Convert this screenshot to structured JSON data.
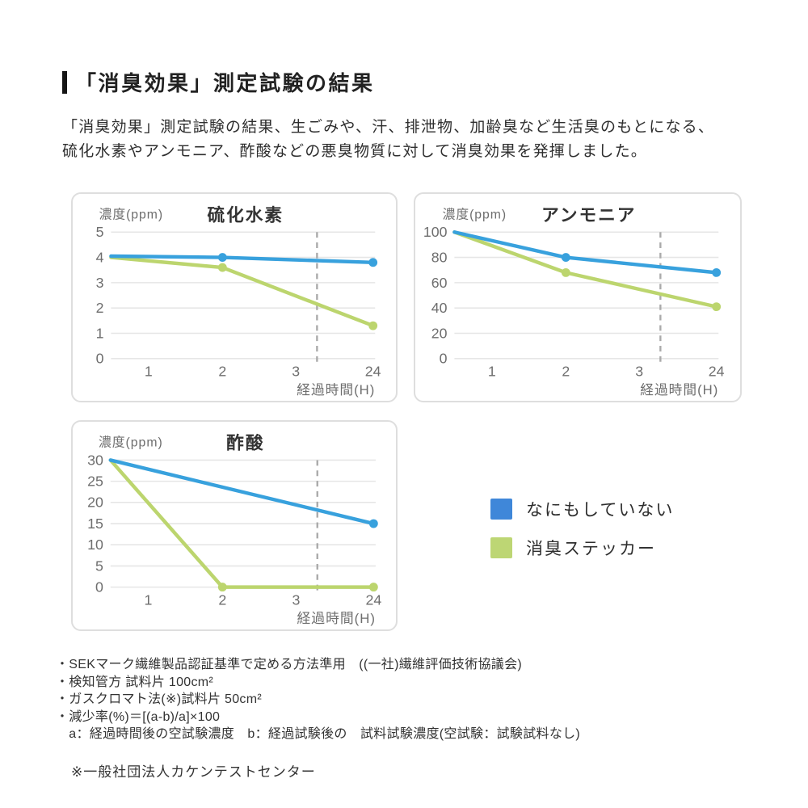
{
  "page": {
    "title": "「消臭効果」測定試験の結果",
    "intro_lines": [
      "「消臭効果」測定試験の結果、生ごみや、汗、排泄物、加齢臭など生活臭のもとになる、",
      "硫化水素やアンモニア、酢酸などの悪臭物質に対して消臭効果を発揮しました。"
    ]
  },
  "colors": {
    "blue": "#38a1dd",
    "green": "#bcd56e",
    "grid": "#e6e6e6",
    "dashed": "#aaaaaa",
    "tick_text": "#6e6e6e",
    "chart_title": "#333333"
  },
  "legend": [
    {
      "label": "なにもしていない",
      "color": "#3f87d9"
    },
    {
      "label": "消臭ステッカー",
      "color": "#bdd674"
    }
  ],
  "chart_data": [
    {
      "type": "line",
      "title": "硫化水素",
      "ylabel": "濃度(ppm)",
      "xlabel": "経過時間(H)",
      "ylim": [
        0,
        5
      ],
      "y_ticks": [
        5,
        4,
        3,
        2,
        1,
        0
      ],
      "x_ticks": [
        1,
        2,
        3,
        24
      ],
      "axis_break_between": [
        3,
        24
      ],
      "grid": true,
      "series": [
        {
          "name": "なにもしていない",
          "color": "blue",
          "points": [
            {
              "t": 0,
              "v": 4.05
            },
            {
              "t": 2,
              "v": 4.0
            },
            {
              "t": 24,
              "v": 3.8
            }
          ],
          "markers": [
            2,
            24
          ]
        },
        {
          "name": "消臭ステッカー",
          "color": "green",
          "points": [
            {
              "t": 0,
              "v": 4.0
            },
            {
              "t": 2,
              "v": 3.6
            },
            {
              "t": 24,
              "v": 1.3
            }
          ],
          "markers": [
            2,
            24
          ]
        }
      ]
    },
    {
      "type": "line",
      "title": "アンモニア",
      "ylabel": "濃度(ppm)",
      "xlabel": "経過時間(H)",
      "ylim": [
        0,
        100
      ],
      "y_ticks": [
        100,
        80,
        60,
        40,
        20,
        0
      ],
      "x_ticks": [
        1,
        2,
        3,
        24
      ],
      "axis_break_between": [
        3,
        24
      ],
      "grid": true,
      "series": [
        {
          "name": "なにもしていない",
          "color": "blue",
          "points": [
            {
              "t": 0,
              "v": 100
            },
            {
              "t": 2,
              "v": 80
            },
            {
              "t": 24,
              "v": 68
            }
          ],
          "markers": [
            2,
            24
          ]
        },
        {
          "name": "消臭ステッカー",
          "color": "green",
          "points": [
            {
              "t": 0,
              "v": 100
            },
            {
              "t": 2,
              "v": 68
            },
            {
              "t": 24,
              "v": 41
            }
          ],
          "markers": [
            2,
            24
          ]
        }
      ]
    },
    {
      "type": "line",
      "title": "酢酸",
      "ylabel": "濃度(ppm)",
      "xlabel": "経過時間(H)",
      "ylim": [
        0,
        30
      ],
      "y_ticks": [
        30,
        25,
        20,
        15,
        10,
        5,
        0
      ],
      "x_ticks": [
        1,
        2,
        3,
        24
      ],
      "axis_break_between": [
        3,
        24
      ],
      "grid": true,
      "series": [
        {
          "name": "なにもしていない",
          "color": "blue",
          "points": [
            {
              "t": 0,
              "v": 30
            },
            {
              "t": 24,
              "v": 15
            }
          ],
          "markers": [
            24
          ]
        },
        {
          "name": "消臭ステッカー",
          "color": "green",
          "points": [
            {
              "t": 0,
              "v": 30
            },
            {
              "t": 2,
              "v": 0
            },
            {
              "t": 24,
              "v": 0
            }
          ],
          "markers": [
            2,
            24
          ]
        }
      ]
    }
  ],
  "footnotes": [
    "・SEKマーク繊維製品認証基準で定める方法準用　((一社)繊維評価技術協議会)",
    "・検知管方 試料片 100cm²",
    "・ガスクロマト法(※)試料片 50cm²",
    "・減少率(%)＝[(a-b)/a]×100",
    "　a：経過時間後の空試験濃度　b：経過試験後の　試料試験濃度(空試験：試験試料なし)"
  ],
  "source_note": "※一般社団法人カケンテストセンター"
}
